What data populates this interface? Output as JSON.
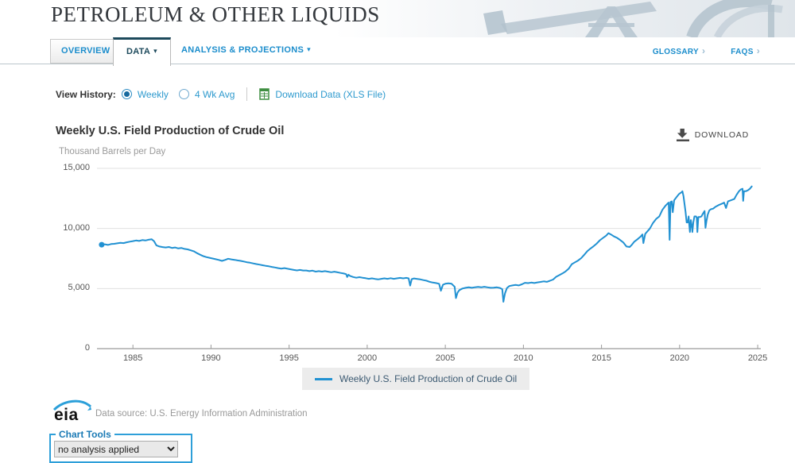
{
  "banner": {
    "title": "PETROLEUM & OTHER LIQUIDS"
  },
  "tabs": {
    "overview": "OVERVIEW",
    "data": "DATA",
    "analysis": "ANALYSIS & PROJECTIONS",
    "glossary": "GLOSSARY",
    "faqs": "FAQS",
    "caret": "▾",
    "link_arrow": "›"
  },
  "view_history": {
    "label": "View History:",
    "options": [
      {
        "label": "Weekly",
        "selected": true
      },
      {
        "label": "4 Wk Avg",
        "selected": false
      }
    ],
    "download_link": "Download Data (XLS File)"
  },
  "chart": {
    "title": "Weekly U.S. Field Production of Crude Oil",
    "download_label": "DOWNLOAD",
    "units": "Thousand Barrels per Day",
    "legend": "Weekly U.S. Field Production of Crude Oil"
  },
  "chart_data": {
    "type": "line",
    "title": "Weekly U.S. Field Production of Crude Oil",
    "ylabel": "Thousand Barrels per Day",
    "xlim": [
      1982.7,
      2025.2
    ],
    "ylim": [
      0,
      15000
    ],
    "yticks": [
      0,
      5000,
      10000,
      15000
    ],
    "ytick_labels": [
      "0",
      "5,000",
      "10,000",
      "15,000"
    ],
    "xticks": [
      1985,
      1990,
      1995,
      2000,
      2005,
      2010,
      2015,
      2020,
      2025
    ],
    "grid": true,
    "legend_position": "bottom",
    "line_color": "#2191d2",
    "series": [
      {
        "name": "Weekly U.S. Field Production of Crude Oil",
        "points": [
          [
            1983.0,
            8650
          ],
          [
            1983.2,
            8680
          ],
          [
            1983.4,
            8630
          ],
          [
            1983.6,
            8700
          ],
          [
            1983.8,
            8720
          ],
          [
            1984.0,
            8760
          ],
          [
            1984.2,
            8800
          ],
          [
            1984.4,
            8780
          ],
          [
            1984.6,
            8850
          ],
          [
            1984.8,
            8900
          ],
          [
            1985.0,
            8950
          ],
          [
            1985.2,
            9000
          ],
          [
            1985.4,
            8960
          ],
          [
            1985.6,
            9030
          ],
          [
            1985.8,
            9000
          ],
          [
            1986.0,
            9060
          ],
          [
            1986.2,
            9100
          ],
          [
            1986.35,
            8950
          ],
          [
            1986.5,
            8600
          ],
          [
            1986.7,
            8500
          ],
          [
            1986.9,
            8450
          ],
          [
            1987.1,
            8420
          ],
          [
            1987.3,
            8460
          ],
          [
            1987.5,
            8380
          ],
          [
            1987.7,
            8420
          ],
          [
            1987.9,
            8340
          ],
          [
            1988.1,
            8380
          ],
          [
            1988.3,
            8300
          ],
          [
            1988.5,
            8260
          ],
          [
            1988.7,
            8180
          ],
          [
            1988.9,
            8100
          ],
          [
            1989.1,
            7950
          ],
          [
            1989.3,
            7820
          ],
          [
            1989.5,
            7700
          ],
          [
            1989.7,
            7620
          ],
          [
            1989.9,
            7560
          ],
          [
            1990.1,
            7500
          ],
          [
            1990.3,
            7440
          ],
          [
            1990.5,
            7380
          ],
          [
            1990.7,
            7300
          ],
          [
            1990.9,
            7380
          ],
          [
            1991.1,
            7480
          ],
          [
            1991.3,
            7430
          ],
          [
            1991.5,
            7390
          ],
          [
            1991.7,
            7340
          ],
          [
            1991.9,
            7300
          ],
          [
            1992.1,
            7250
          ],
          [
            1992.3,
            7190
          ],
          [
            1992.5,
            7150
          ],
          [
            1992.7,
            7090
          ],
          [
            1992.9,
            7040
          ],
          [
            1993.1,
            6990
          ],
          [
            1993.3,
            6940
          ],
          [
            1993.5,
            6890
          ],
          [
            1993.7,
            6850
          ],
          [
            1993.9,
            6800
          ],
          [
            1994.1,
            6750
          ],
          [
            1994.3,
            6700
          ],
          [
            1994.5,
            6660
          ],
          [
            1994.7,
            6700
          ],
          [
            1994.9,
            6650
          ],
          [
            1995.1,
            6600
          ],
          [
            1995.3,
            6550
          ],
          [
            1995.5,
            6510
          ],
          [
            1995.7,
            6550
          ],
          [
            1995.9,
            6500
          ],
          [
            1996.1,
            6500
          ],
          [
            1996.3,
            6450
          ],
          [
            1996.5,
            6490
          ],
          [
            1996.7,
            6410
          ],
          [
            1996.9,
            6450
          ],
          [
            1997.1,
            6410
          ],
          [
            1997.3,
            6450
          ],
          [
            1997.5,
            6400
          ],
          [
            1997.7,
            6360
          ],
          [
            1997.9,
            6400
          ],
          [
            1998.1,
            6350
          ],
          [
            1998.3,
            6300
          ],
          [
            1998.5,
            6250
          ],
          [
            1998.65,
            6200
          ],
          [
            1998.72,
            5960
          ],
          [
            1998.8,
            6150
          ],
          [
            1998.9,
            6050
          ],
          [
            1999.1,
            5960
          ],
          [
            1999.3,
            5900
          ],
          [
            1999.5,
            5950
          ],
          [
            1999.7,
            5900
          ],
          [
            1999.9,
            5860
          ],
          [
            2000.1,
            5810
          ],
          [
            2000.3,
            5850
          ],
          [
            2000.5,
            5800
          ],
          [
            2000.7,
            5760
          ],
          [
            2000.9,
            5810
          ],
          [
            2001.1,
            5850
          ],
          [
            2001.3,
            5810
          ],
          [
            2001.5,
            5860
          ],
          [
            2001.7,
            5810
          ],
          [
            2001.9,
            5850
          ],
          [
            2002.1,
            5890
          ],
          [
            2002.3,
            5850
          ],
          [
            2002.5,
            5890
          ],
          [
            2002.65,
            5850
          ],
          [
            2002.75,
            5250
          ],
          [
            2002.85,
            5780
          ],
          [
            2003.0,
            5840
          ],
          [
            2003.2,
            5800
          ],
          [
            2003.4,
            5760
          ],
          [
            2003.6,
            5700
          ],
          [
            2003.8,
            5650
          ],
          [
            2004.0,
            5560
          ],
          [
            2004.2,
            5500
          ],
          [
            2004.4,
            5460
          ],
          [
            2004.6,
            5400
          ],
          [
            2004.72,
            4820
          ],
          [
            2004.85,
            5320
          ],
          [
            2005.0,
            5400
          ],
          [
            2005.2,
            5440
          ],
          [
            2005.4,
            5400
          ],
          [
            2005.6,
            5150
          ],
          [
            2005.68,
            4200
          ],
          [
            2005.78,
            4650
          ],
          [
            2005.9,
            4870
          ],
          [
            2006.1,
            5000
          ],
          [
            2006.3,
            5060
          ],
          [
            2006.5,
            5100
          ],
          [
            2006.7,
            5060
          ],
          [
            2006.9,
            5110
          ],
          [
            2007.1,
            5140
          ],
          [
            2007.3,
            5100
          ],
          [
            2007.5,
            5150
          ],
          [
            2007.7,
            5100
          ],
          [
            2007.9,
            5060
          ],
          [
            2008.1,
            5070
          ],
          [
            2008.3,
            5100
          ],
          [
            2008.5,
            5050
          ],
          [
            2008.65,
            4950
          ],
          [
            2008.72,
            3900
          ],
          [
            2008.82,
            4600
          ],
          [
            2008.95,
            5050
          ],
          [
            2009.1,
            5210
          ],
          [
            2009.3,
            5260
          ],
          [
            2009.5,
            5300
          ],
          [
            2009.7,
            5260
          ],
          [
            2009.9,
            5350
          ],
          [
            2010.1,
            5480
          ],
          [
            2010.3,
            5450
          ],
          [
            2010.5,
            5500
          ],
          [
            2010.7,
            5460
          ],
          [
            2010.9,
            5510
          ],
          [
            2011.1,
            5550
          ],
          [
            2011.3,
            5600
          ],
          [
            2011.5,
            5560
          ],
          [
            2011.7,
            5650
          ],
          [
            2011.9,
            5750
          ],
          [
            2012.1,
            5980
          ],
          [
            2012.3,
            6120
          ],
          [
            2012.5,
            6260
          ],
          [
            2012.7,
            6420
          ],
          [
            2012.9,
            6650
          ],
          [
            2013.1,
            7030
          ],
          [
            2013.3,
            7180
          ],
          [
            2013.5,
            7330
          ],
          [
            2013.7,
            7530
          ],
          [
            2013.9,
            7820
          ],
          [
            2014.1,
            8120
          ],
          [
            2014.3,
            8330
          ],
          [
            2014.5,
            8530
          ],
          [
            2014.7,
            8750
          ],
          [
            2014.9,
            9020
          ],
          [
            2015.1,
            9220
          ],
          [
            2015.3,
            9400
          ],
          [
            2015.45,
            9610
          ],
          [
            2015.6,
            9500
          ],
          [
            2015.8,
            9340
          ],
          [
            2016.0,
            9220
          ],
          [
            2016.2,
            9030
          ],
          [
            2016.4,
            8830
          ],
          [
            2016.6,
            8500
          ],
          [
            2016.8,
            8460
          ],
          [
            2016.9,
            8580
          ],
          [
            2017.1,
            8900
          ],
          [
            2017.3,
            9100
          ],
          [
            2017.5,
            9320
          ],
          [
            2017.62,
            9500
          ],
          [
            2017.68,
            8780
          ],
          [
            2017.8,
            9550
          ],
          [
            2017.9,
            9700
          ],
          [
            2018.1,
            10000
          ],
          [
            2018.3,
            10460
          ],
          [
            2018.5,
            10800
          ],
          [
            2018.7,
            11000
          ],
          [
            2018.9,
            11550
          ],
          [
            2019.1,
            11900
          ],
          [
            2019.25,
            12100
          ],
          [
            2019.3,
            12150
          ],
          [
            2019.36,
            9050
          ],
          [
            2019.42,
            12200
          ],
          [
            2019.5,
            12250
          ],
          [
            2019.56,
            11350
          ],
          [
            2019.65,
            12350
          ],
          [
            2019.8,
            12600
          ],
          [
            2019.95,
            12850
          ],
          [
            2020.05,
            12950
          ],
          [
            2020.12,
            13000
          ],
          [
            2020.18,
            13100
          ],
          [
            2020.25,
            12700
          ],
          [
            2020.3,
            12200
          ],
          [
            2020.38,
            11400
          ],
          [
            2020.45,
            10500
          ],
          [
            2020.52,
            10500
          ],
          [
            2020.58,
            11000
          ],
          [
            2020.62,
            10300
          ],
          [
            2020.66,
            9700
          ],
          [
            2020.72,
            10700
          ],
          [
            2020.78,
            10200
          ],
          [
            2020.82,
            9700
          ],
          [
            2020.88,
            10500
          ],
          [
            2020.95,
            11000
          ],
          [
            2021.05,
            11000
          ],
          [
            2021.1,
            10900
          ],
          [
            2021.14,
            9700
          ],
          [
            2021.2,
            10950
          ],
          [
            2021.3,
            10950
          ],
          [
            2021.4,
            11000
          ],
          [
            2021.5,
            11250
          ],
          [
            2021.6,
            11450
          ],
          [
            2021.66,
            10050
          ],
          [
            2021.72,
            10600
          ],
          [
            2021.8,
            11150
          ],
          [
            2021.9,
            11500
          ],
          [
            2022.0,
            11600
          ],
          [
            2022.15,
            11650
          ],
          [
            2022.3,
            11800
          ],
          [
            2022.5,
            11950
          ],
          [
            2022.7,
            12050
          ],
          [
            2022.85,
            12150
          ],
          [
            2022.97,
            11700
          ],
          [
            2023.1,
            12250
          ],
          [
            2023.3,
            12350
          ],
          [
            2023.5,
            12450
          ],
          [
            2023.65,
            12800
          ],
          [
            2023.8,
            13100
          ],
          [
            2023.92,
            13250
          ],
          [
            2024.03,
            13300
          ],
          [
            2024.07,
            12300
          ],
          [
            2024.12,
            13100
          ],
          [
            2024.25,
            13100
          ],
          [
            2024.4,
            13200
          ],
          [
            2024.5,
            13300
          ],
          [
            2024.62,
            13500
          ]
        ]
      }
    ]
  },
  "footer": {
    "logo": "eia",
    "source": "Data source: U.S. Energy Information Administration"
  },
  "chart_tools": {
    "legend": "Chart Tools",
    "selected_option": "no analysis applied"
  },
  "colors": {
    "link_blue": "#1b8dcc",
    "active_tab": "#1d4a5c",
    "line": "#2191d2",
    "legend_text": "#3c5a72",
    "xls_green": "#3e8e41",
    "grid": "#e1e1e1",
    "axis": "#9a9a9a"
  }
}
